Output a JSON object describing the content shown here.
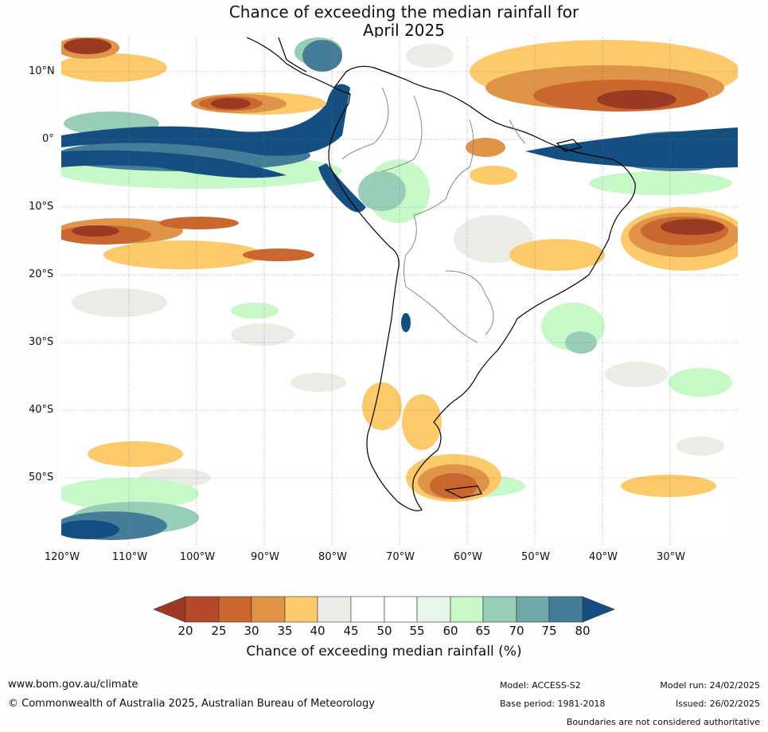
{
  "title": {
    "line1": "Chance of exceeding the median rainfall for",
    "line2": "April 2025"
  },
  "axes": {
    "lat_labels": [
      "10°N",
      "0°",
      "10°S",
      "20°S",
      "30°S",
      "40°S",
      "50°S"
    ],
    "lon_labels": [
      "120°W",
      "110°W",
      "100°W",
      "90°W",
      "80°W",
      "70°W",
      "60°W",
      "50°W",
      "40°W",
      "30°W"
    ]
  },
  "colorbar": {
    "title": "Chance of exceeding median rainfall (%)",
    "ticks": [
      "20",
      "25",
      "30",
      "35",
      "40",
      "45",
      "50",
      "55",
      "60",
      "65",
      "70",
      "75",
      "80"
    ],
    "colors": [
      "#9b3a22",
      "#b44a2a",
      "#c9672f",
      "#df9448",
      "#fcca6a",
      "#ecebe6",
      "#ffffff",
      "#ffffff",
      "#e8f5e9",
      "#c7f8c8",
      "#98cdb6",
      "#6fa8a6",
      "#457d99",
      "#154f82"
    ]
  },
  "footer": {
    "site": "www.bom.gov.au/climate",
    "copyright": "© Commonwealth of Australia 2025, Australian Bureau of Meteorology",
    "model": "Model: ACCESS-S2",
    "base_period": "Base period: 1981-2018",
    "model_run": "Model run: 24/02/2025",
    "issued": "Issued: 26/02/2025",
    "disclaimer": "Boundaries are not considered authoritative"
  }
}
